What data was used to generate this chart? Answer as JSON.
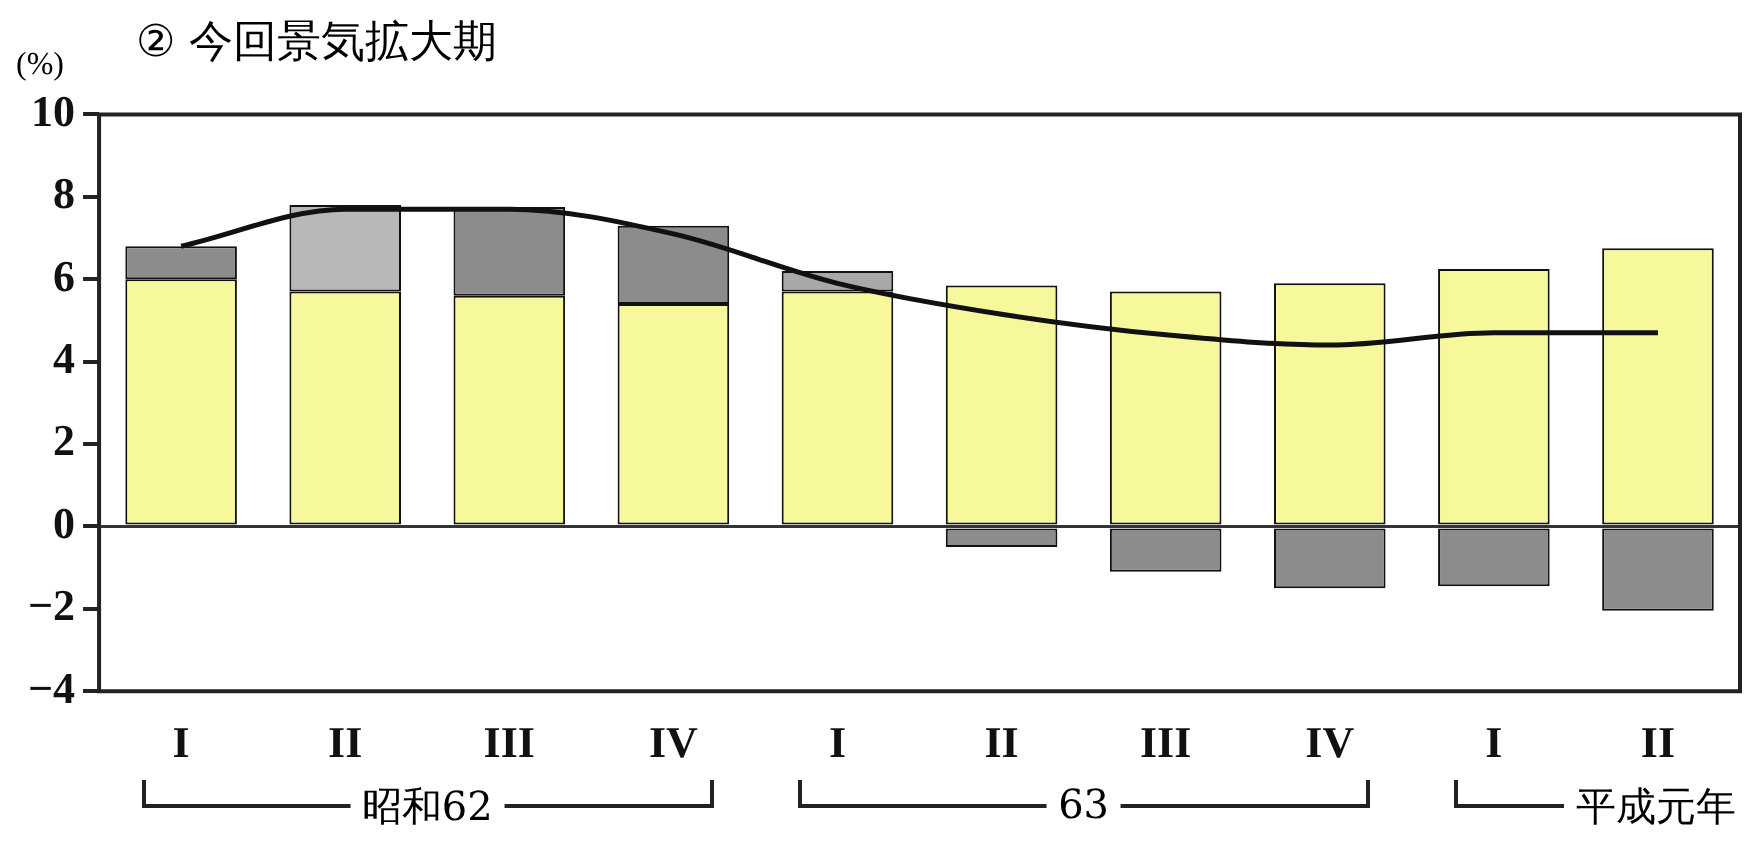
{
  "chart_data": {
    "type": "bar",
    "stacked": true,
    "title": "② 今回景気拡大期",
    "ylabel": "(%)",
    "categories": [
      "I",
      "II",
      "III",
      "IV",
      "I",
      "II",
      "III",
      "IV",
      "I",
      "II"
    ],
    "series": [
      {
        "color": "#f7f79c",
        "values": [
          6.0,
          5.7,
          5.6,
          5.4,
          5.7,
          5.85,
          5.7,
          5.9,
          6.25,
          6.75
        ]
      },
      {
        "color": "#8c8c8c",
        "colors": [
          "#8c8c8c",
          "#b8b8b8",
          "#8c8c8c",
          "#8c8c8c",
          "#a8a8a8",
          null,
          null,
          null,
          null,
          null
        ],
        "values": [
          0.8,
          2.1,
          2.15,
          1.9,
          0.5,
          null,
          null,
          null,
          null,
          null
        ]
      },
      {
        "color": "#8c8c8c",
        "values": [
          null,
          null,
          null,
          null,
          null,
          -0.5,
          -1.1,
          -1.5,
          -1.45,
          -2.05
        ]
      },
      {
        "type": "line",
        "color": "#111111",
        "values": [
          6.8,
          7.7,
          7.7,
          7.1,
          5.9,
          5.15,
          4.65,
          4.4,
          4.7,
          4.7
        ]
      }
    ],
    "ylim": [
      -4,
      10
    ],
    "yticks": [
      -4,
      -2,
      0,
      2,
      4,
      6,
      8,
      10
    ],
    "grid": false,
    "legend": false,
    "marker": "none",
    "ref_lines": [
      {
        "axis": "y",
        "value": 0,
        "color": "#333333"
      }
    ],
    "annotations": [
      "昭和62",
      "63",
      "平成元年"
    ]
  }
}
